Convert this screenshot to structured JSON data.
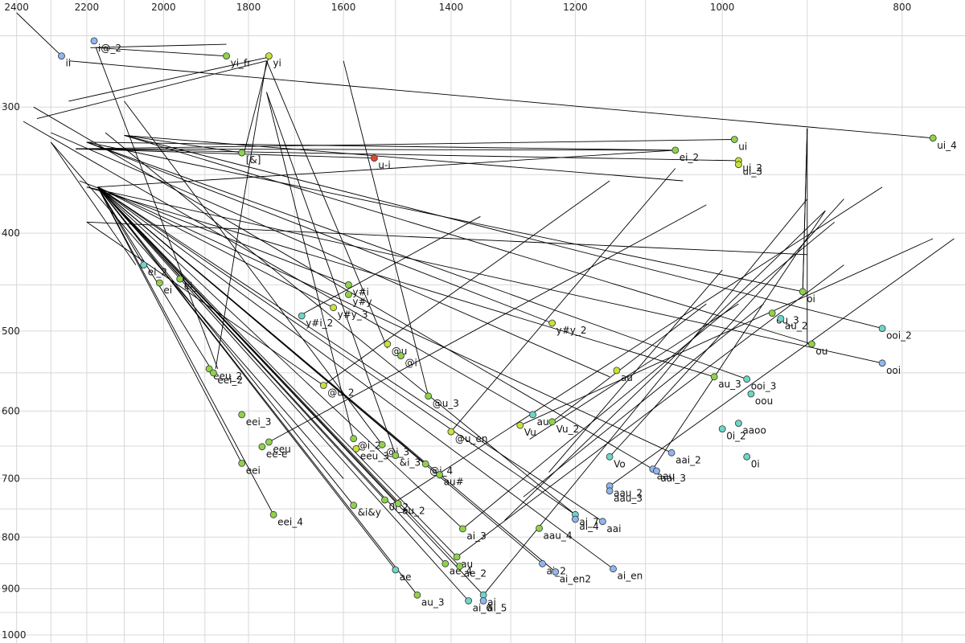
{
  "chart_data": {
    "type": "scatter",
    "title": "",
    "xlabel": "",
    "ylabel": "",
    "x_axis": {
      "scale": "log",
      "reversed": true,
      "range": [
        2450,
        740
      ],
      "ticks": [
        2400,
        2200,
        2000,
        1800,
        1600,
        1400,
        1200,
        1000,
        800
      ]
    },
    "y_axis": {
      "scale": "log",
      "reversed": true,
      "range": [
        235,
        1000
      ],
      "ticks": [
        300,
        400,
        500,
        600,
        700,
        800,
        900,
        1000
      ]
    },
    "grid": true,
    "colors": {
      "green": "#8fd24a",
      "lightgreen": "#7fd06a",
      "yellowgreen": "#c9e23a",
      "cyan": "#6cd6c8",
      "blue": "#8fb6ef",
      "red": "#e2462a"
    },
    "points": [
      {
        "label": "ii",
        "x": 2270,
        "y": 267,
        "color": "blue"
      },
      {
        "label": "i@_2",
        "x": 2180,
        "y": 258,
        "color": "blue"
      },
      {
        "label": "yi_fr",
        "x": 1850,
        "y": 267,
        "color": "green"
      },
      {
        "label": "yi",
        "x": 1755,
        "y": 267,
        "color": "yellowgreen"
      },
      {
        "label": "ui_4",
        "x": 770,
        "y": 322,
        "color": "green"
      },
      {
        "label": "ui",
        "x": 985,
        "y": 323,
        "color": "green"
      },
      {
        "label": "ei_2",
        "x": 1060,
        "y": 331,
        "color": "green"
      },
      {
        "label": "[&]",
        "x": 1815,
        "y": 333,
        "color": "green"
      },
      {
        "label": "u-i",
        "x": 1540,
        "y": 337,
        "color": "red"
      },
      {
        "label": "ui_2",
        "x": 980,
        "y": 339,
        "color": "yellowgreen"
      },
      {
        "label": "ui_3",
        "x": 980,
        "y": 342,
        "color": "yellowgreen"
      },
      {
        "label": "ei_2",
        "x": 2050,
        "y": 430,
        "color": "cyan"
      },
      {
        "label": "ei",
        "x": 2010,
        "y": 448,
        "color": "green"
      },
      {
        "label": "ei_",
        "x": 1960,
        "y": 444,
        "color": "green"
      },
      {
        "label": "y#i",
        "x": 1590,
        "y": 450,
        "color": "green"
      },
      {
        "label": "y#y",
        "x": 1590,
        "y": 460,
        "color": "green"
      },
      {
        "label": "y#y_3",
        "x": 1620,
        "y": 474,
        "color": "yellowgreen"
      },
      {
        "label": "y#i_2",
        "x": 1685,
        "y": 483,
        "color": "cyan"
      },
      {
        "label": "oi",
        "x": 905,
        "y": 457,
        "color": "green"
      },
      {
        "label": "ou_3",
        "x": 940,
        "y": 480,
        "color": "green"
      },
      {
        "label": "au_2",
        "x": 930,
        "y": 486,
        "color": "cyan"
      },
      {
        "label": "y#y_2",
        "x": 1235,
        "y": 491,
        "color": "yellowgreen"
      },
      {
        "label": "ooi_2",
        "x": 820,
        "y": 497,
        "color": "cyan"
      },
      {
        "label": "ou",
        "x": 895,
        "y": 515,
        "color": "green"
      },
      {
        "label": "@u",
        "x": 1515,
        "y": 515,
        "color": "yellowgreen"
      },
      {
        "label": "@i",
        "x": 1490,
        "y": 529,
        "color": "green"
      },
      {
        "label": "ooi",
        "x": 820,
        "y": 538,
        "color": "blue"
      },
      {
        "label": "eeu_2",
        "x": 1890,
        "y": 545,
        "color": "green"
      },
      {
        "label": "eei_2",
        "x": 1880,
        "y": 550,
        "color": "green"
      },
      {
        "label": "au",
        "x": 1140,
        "y": 547,
        "color": "yellowgreen"
      },
      {
        "label": "au_3",
        "x": 1010,
        "y": 555,
        "color": "green"
      },
      {
        "label": "ooi_3",
        "x": 970,
        "y": 558,
        "color": "cyan"
      },
      {
        "label": "@u_2",
        "x": 1640,
        "y": 566,
        "color": "yellowgreen"
      },
      {
        "label": "oou",
        "x": 965,
        "y": 577,
        "color": "cyan"
      },
      {
        "label": "@u_3",
        "x": 1440,
        "y": 580,
        "color": "green"
      },
      {
        "label": "eei_3",
        "x": 1815,
        "y": 605,
        "color": "green"
      },
      {
        "label": "au",
        "x": 1265,
        "y": 605,
        "color": "cyan"
      },
      {
        "label": "aaoo",
        "x": 980,
        "y": 617,
        "color": "cyan"
      },
      {
        "label": "Vu_2",
        "x": 1235,
        "y": 615,
        "color": "green"
      },
      {
        "label": "Vu",
        "x": 1285,
        "y": 620,
        "color": "yellowgreen"
      },
      {
        "label": "0i_2",
        "x": 1000,
        "y": 625,
        "color": "cyan"
      },
      {
        "label": "@u_en",
        "x": 1400,
        "y": 629,
        "color": "yellowgreen"
      },
      {
        "label": "@i_2",
        "x": 1580,
        "y": 639,
        "color": "green"
      },
      {
        "label": "eeu",
        "x": 1755,
        "y": 644,
        "color": "green"
      },
      {
        "label": "@i_3",
        "x": 1525,
        "y": 648,
        "color": "green"
      },
      {
        "label": "ee-e",
        "x": 1770,
        "y": 651,
        "color": "green"
      },
      {
        "label": "eeu_3",
        "x": 1575,
        "y": 654,
        "color": "yellowgreen"
      },
      {
        "label": "aai_2",
        "x": 1065,
        "y": 660,
        "color": "blue"
      },
      {
        "label": "0i",
        "x": 970,
        "y": 666,
        "color": "cyan"
      },
      {
        "label": "&i_3",
        "x": 1500,
        "y": 664,
        "color": "green"
      },
      {
        "label": "Vo",
        "x": 1150,
        "y": 666,
        "color": "cyan"
      },
      {
        "label": "eei",
        "x": 1815,
        "y": 676,
        "color": "green"
      },
      {
        "label": "@i_4",
        "x": 1445,
        "y": 677,
        "color": "green"
      },
      {
        "label": "aau",
        "x": 1090,
        "y": 685,
        "color": "blue"
      },
      {
        "label": "aai_3",
        "x": 1085,
        "y": 688,
        "color": "blue"
      },
      {
        "label": "au#",
        "x": 1420,
        "y": 694,
        "color": "green"
      },
      {
        "label": "aau_2",
        "x": 1150,
        "y": 712,
        "color": "blue"
      },
      {
        "label": "aau_3",
        "x": 1150,
        "y": 720,
        "color": "blue"
      },
      {
        "label": "0i_2",
        "x": 1520,
        "y": 735,
        "color": "green"
      },
      {
        "label": "&i&y",
        "x": 1580,
        "y": 744,
        "color": "green"
      },
      {
        "label": "au_2",
        "x": 1495,
        "y": 741,
        "color": "green"
      },
      {
        "label": "eei_4",
        "x": 1745,
        "y": 760,
        "color": "green"
      },
      {
        "label": "ai_7",
        "x": 1200,
        "y": 760,
        "color": "cyan"
      },
      {
        "label": "ai_4",
        "x": 1200,
        "y": 768,
        "color": "blue"
      },
      {
        "label": "aai",
        "x": 1160,
        "y": 772,
        "color": "blue"
      },
      {
        "label": "aau_4",
        "x": 1255,
        "y": 784,
        "color": "green"
      },
      {
        "label": "ai_3",
        "x": 1380,
        "y": 785,
        "color": "green"
      },
      {
        "label": "au",
        "x": 1390,
        "y": 837,
        "color": "green"
      },
      {
        "label": "ae_4",
        "x": 1410,
        "y": 850,
        "color": "green"
      },
      {
        "label": "ae_2",
        "x": 1385,
        "y": 855,
        "color": "green"
      },
      {
        "label": "ai_2",
        "x": 1250,
        "y": 850,
        "color": "blue"
      },
      {
        "label": "ai_en",
        "x": 1145,
        "y": 860,
        "color": "blue"
      },
      {
        "label": "ai_en2",
        "x": 1230,
        "y": 866,
        "color": "blue"
      },
      {
        "label": "ae",
        "x": 1500,
        "y": 862,
        "color": "cyan"
      },
      {
        "label": "au_3",
        "x": 1460,
        "y": 913,
        "color": "green"
      },
      {
        "label": "ai",
        "x": 1345,
        "y": 913,
        "color": "cyan"
      },
      {
        "label": "ai_5",
        "x": 1345,
        "y": 925,
        "color": "blue"
      },
      {
        "label": "ai_6",
        "x": 1370,
        "y": 925,
        "color": "cyan"
      }
    ],
    "segments": [
      [
        2400,
        242,
        2270,
        267
      ],
      [
        2270,
        267,
        2270,
        267
      ],
      [
        2190,
        262,
        1850,
        260
      ],
      [
        2175,
        262,
        1855,
        267
      ],
      [
        2250,
        270,
        770,
        322
      ],
      [
        2340,
        308,
        1760,
        270
      ],
      [
        2250,
        296,
        1760,
        268
      ],
      [
        1760,
        270,
        1875,
        545
      ],
      [
        1760,
        270,
        1515,
        520
      ],
      [
        1760,
        290,
        1500,
        663
      ],
      [
        1760,
        290,
        1580,
        640
      ],
      [
        2175,
        262,
        1870,
        545
      ],
      [
        2100,
        296,
        1525,
        648
      ],
      [
        2230,
        330,
        985,
        323
      ],
      [
        2230,
        330,
        1060,
        331
      ],
      [
        2230,
        330,
        980,
        339
      ],
      [
        2230,
        330,
        1540,
        337
      ],
      [
        2200,
        325,
        905,
        457
      ],
      [
        2200,
        325,
        970,
        558
      ],
      [
        2200,
        325,
        1235,
        491
      ],
      [
        2200,
        325,
        1060,
        331
      ],
      [
        2100,
        320,
        1815,
        333
      ],
      [
        2100,
        320,
        820,
        497
      ],
      [
        2100,
        320,
        895,
        515
      ],
      [
        2100,
        320,
        1050,
        355
      ],
      [
        2300,
        325,
        2070,
        430
      ],
      [
        2300,
        325,
        1600,
        700
      ],
      [
        2220,
        355,
        1590,
        450
      ],
      [
        2200,
        360,
        1010,
        555
      ],
      [
        2200,
        360,
        820,
        538
      ],
      [
        2170,
        360,
        2050,
        430
      ],
      [
        2170,
        360,
        1815,
        676
      ],
      [
        2170,
        360,
        1745,
        760
      ],
      [
        2170,
        360,
        1500,
        862
      ],
      [
        2170,
        360,
        1385,
        855
      ],
      [
        2170,
        360,
        1460,
        913
      ],
      [
        2170,
        360,
        1345,
        913
      ],
      [
        2170,
        360,
        1370,
        925
      ],
      [
        2170,
        360,
        1200,
        760
      ],
      [
        2170,
        360,
        1250,
        850
      ],
      [
        2170,
        360,
        1230,
        866
      ],
      [
        2170,
        360,
        1145,
        860
      ],
      [
        2170,
        360,
        1380,
        785
      ],
      [
        2170,
        360,
        1495,
        741
      ],
      [
        2170,
        360,
        1580,
        744
      ],
      [
        2170,
        360,
        1160,
        772
      ],
      [
        2170,
        360,
        1065,
        660
      ],
      [
        2170,
        360,
        1445,
        677
      ],
      [
        2170,
        360,
        1520,
        735
      ],
      [
        2170,
        360,
        1880,
        550
      ],
      [
        2170,
        360,
        1390,
        837
      ],
      [
        2170,
        360,
        1410,
        850
      ],
      [
        2170,
        360,
        1620,
        474
      ],
      [
        2170,
        360,
        1060,
        331
      ],
      [
        2200,
        390,
        900,
        420
      ],
      [
        2200,
        390,
        1640,
        566
      ],
      [
        1640,
        566,
        1150,
        355
      ],
      [
        1690,
        483,
        1350,
        385
      ],
      [
        1755,
        644,
        1020,
        375
      ],
      [
        1505,
        741,
        820,
        360
      ],
      [
        1380,
        785,
        870,
        390
      ],
      [
        1390,
        837,
        860,
        430
      ],
      [
        1345,
        913,
        900,
        370
      ],
      [
        1310,
        770,
        880,
        380
      ],
      [
        1280,
        730,
        950,
        470
      ],
      [
        1240,
        690,
        1000,
        435
      ],
      [
        1150,
        666,
        860,
        370
      ],
      [
        1090,
        685,
        880,
        380
      ],
      [
        1270,
        640,
        980,
        470
      ],
      [
        1235,
        615,
        1020,
        470
      ],
      [
        1285,
        620,
        770,
        405
      ],
      [
        1400,
        629,
        1060,
        345
      ],
      [
        1150,
        712,
        750,
        405
      ],
      [
        905,
        457,
        900,
        315
      ],
      [
        900,
        315,
        905,
        457
      ],
      [
        900,
        515,
        900,
        315
      ],
      [
        1600,
        270,
        1440,
        580
      ],
      [
        1755,
        267,
        1810,
        333
      ],
      [
        2380,
        310,
        1265,
        605
      ],
      [
        2350,
        300,
        1090,
        685
      ],
      [
        2300,
        318,
        1150,
        555
      ],
      [
        2150,
        318,
        1200,
        760
      ]
    ]
  }
}
